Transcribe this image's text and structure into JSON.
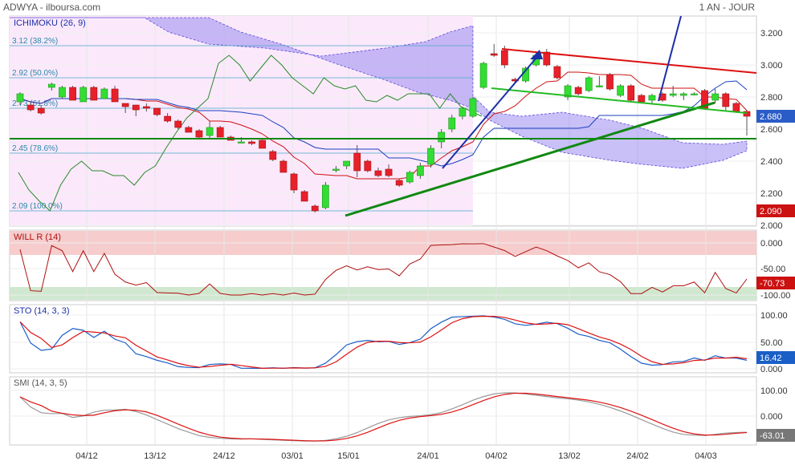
{
  "header": {
    "symbol": "ADWYA - ilboursa.com",
    "period": "1 AN - JOUR"
  },
  "chart_data": {
    "type": "candlestick",
    "x_labels": [
      "04/12",
      "13/12",
      "24/12",
      "03/01",
      "15/01",
      "24/01",
      "04/02",
      "13/02",
      "24/02",
      "04/03"
    ],
    "price_panel": {
      "title": "ICHIMOKU (26, 9)",
      "yticks": [
        2.0,
        2.2,
        2.4,
        2.6,
        2.8,
        3.0,
        3.2
      ],
      "ylim": [
        2.0,
        3.3
      ],
      "last_close": "2.680",
      "low_marker": "2.090",
      "fibonacci": [
        {
          "label": "3.12  (38.2%)",
          "value": 3.12
        },
        {
          "label": "2.92  (50.0%)",
          "value": 2.92
        },
        {
          "label": "2.73  (61.8%)",
          "value": 2.73
        },
        {
          "label": "2.45  (78.6%)",
          "value": 2.45
        },
        {
          "label": "2.09  (100.0%)",
          "value": 2.09
        }
      ],
      "support_level": 2.54,
      "candles": [
        [
          2.77,
          2.83,
          2.75,
          2.82
        ],
        [
          2.75,
          2.77,
          2.71,
          2.72
        ],
        [
          2.73,
          2.75,
          2.69,
          2.7
        ],
        [
          2.86,
          2.89,
          2.84,
          2.88
        ],
        [
          2.8,
          2.87,
          2.79,
          2.86
        ],
        [
          2.86,
          2.87,
          2.78,
          2.78
        ],
        [
          2.77,
          2.87,
          2.77,
          2.86
        ],
        [
          2.86,
          2.87,
          2.78,
          2.78
        ],
        [
          2.79,
          2.86,
          2.79,
          2.85
        ],
        [
          2.85,
          2.87,
          2.77,
          2.77
        ],
        [
          2.76,
          2.76,
          2.7,
          2.74
        ],
        [
          2.75,
          2.75,
          2.68,
          2.72
        ],
        [
          2.74,
          2.76,
          2.71,
          2.73
        ],
        [
          2.73,
          2.73,
          2.68,
          2.69
        ],
        [
          2.68,
          2.7,
          2.64,
          2.65
        ],
        [
          2.65,
          2.66,
          2.6,
          2.61
        ],
        [
          2.61,
          2.62,
          2.58,
          2.58
        ],
        [
          2.59,
          2.6,
          2.54,
          2.55
        ],
        [
          2.56,
          2.65,
          2.54,
          2.61
        ],
        [
          2.61,
          2.62,
          2.55,
          2.55
        ],
        [
          2.55,
          2.56,
          2.53,
          2.53
        ],
        [
          2.52,
          2.55,
          2.52,
          2.52
        ],
        [
          2.52,
          2.53,
          2.5,
          2.51
        ],
        [
          2.53,
          2.54,
          2.48,
          2.48
        ],
        [
          2.46,
          2.47,
          2.4,
          2.41
        ],
        [
          2.4,
          2.41,
          2.33,
          2.33
        ],
        [
          2.32,
          2.33,
          2.2,
          2.22
        ],
        [
          2.21,
          2.22,
          2.15,
          2.15
        ],
        [
          2.12,
          2.13,
          2.08,
          2.09
        ],
        [
          2.11,
          2.27,
          2.1,
          2.25
        ],
        [
          2.35,
          2.37,
          2.33,
          2.35
        ],
        [
          2.37,
          2.4,
          2.35,
          2.4
        ],
        [
          2.45,
          2.5,
          2.3,
          2.34
        ],
        [
          2.4,
          2.41,
          2.33,
          2.34
        ],
        [
          2.34,
          2.36,
          2.3,
          2.31
        ],
        [
          2.35,
          2.38,
          2.3,
          2.31
        ],
        [
          2.28,
          2.29,
          2.24,
          2.25
        ],
        [
          2.27,
          2.34,
          2.26,
          2.33
        ],
        [
          2.31,
          2.39,
          2.29,
          2.37
        ],
        [
          2.38,
          2.5,
          2.36,
          2.48
        ],
        [
          2.52,
          2.6,
          2.48,
          2.58
        ],
        [
          2.6,
          2.69,
          2.58,
          2.67
        ],
        [
          2.68,
          2.74,
          2.66,
          2.73
        ],
        [
          2.68,
          2.8,
          2.67,
          2.79
        ],
        [
          2.86,
          3.02,
          2.85,
          3.01
        ],
        [
          3.07,
          3.13,
          3.05,
          3.06
        ],
        [
          3.09,
          3.12,
          2.98,
          3.0
        ],
        [
          2.91,
          2.92,
          2.89,
          2.9
        ],
        [
          2.9,
          2.99,
          2.89,
          2.98
        ],
        [
          3.0,
          3.08,
          2.99,
          3.06
        ],
        [
          3.08,
          3.1,
          2.99,
          3.0
        ],
        [
          2.99,
          3.0,
          2.91,
          2.92
        ],
        [
          2.8,
          2.88,
          2.78,
          2.87
        ],
        [
          2.86,
          2.87,
          2.81,
          2.82
        ],
        [
          2.84,
          2.93,
          2.83,
          2.92
        ],
        [
          2.87,
          2.93,
          2.86,
          2.87
        ],
        [
          2.94,
          2.95,
          2.84,
          2.85
        ],
        [
          2.81,
          2.88,
          2.8,
          2.87
        ],
        [
          2.87,
          2.88,
          2.77,
          2.78
        ],
        [
          2.81,
          2.82,
          2.76,
          2.77
        ],
        [
          2.78,
          2.82,
          2.76,
          2.81
        ],
        [
          2.82,
          2.83,
          2.77,
          2.78
        ],
        [
          2.81,
          2.87,
          2.8,
          2.82
        ],
        [
          2.81,
          2.83,
          2.78,
          2.82
        ],
        [
          2.82,
          2.83,
          2.81,
          2.82
        ],
        [
          2.84,
          2.85,
          2.72,
          2.73
        ],
        [
          2.78,
          2.85,
          2.76,
          2.82
        ],
        [
          2.82,
          2.83,
          2.71,
          2.74
        ],
        [
          2.76,
          2.77,
          2.7,
          2.71
        ],
        [
          2.71,
          2.72,
          2.56,
          2.68
        ]
      ]
    },
    "willr_panel": {
      "title": "WILL R (14)",
      "yticks": [
        "0.000",
        "-50.00",
        "-100.00"
      ],
      "last": "-70.73"
    },
    "sto_panel": {
      "title": "STO (14, 3, 3)",
      "yticks": [
        "100.00",
        "50.00",
        "0.000"
      ],
      "last": "16.42"
    },
    "smi_panel": {
      "title": "SMI (14, 3, 5)",
      "yticks": [
        "100.00",
        "0.000"
      ],
      "last": "-63.01"
    },
    "colors": {
      "up": "#33dd33",
      "down": "#e8202a",
      "cloud": "#9b8df0",
      "green_line": "#118811",
      "blue_arrow": "#1a2fa8",
      "red_line": "#dd1111"
    }
  }
}
